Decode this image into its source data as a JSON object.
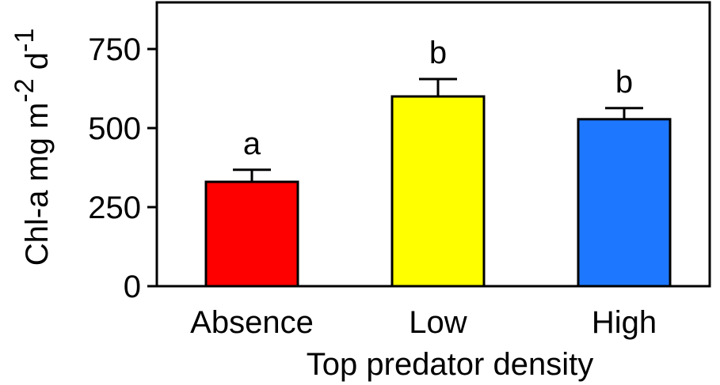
{
  "chart_data": {
    "type": "bar",
    "title": "",
    "xlabel": "Top predator density",
    "ylabel": {
      "base": "Chl-a mg m",
      "exp1": "-2",
      "unit2": " d",
      "exp2": "-1"
    },
    "categories": [
      "Absence",
      "Low",
      "High"
    ],
    "values": [
      330,
      600,
      528
    ],
    "errors": [
      38,
      55,
      35
    ],
    "colors": [
      "#ff0000",
      "#ffff00",
      "#1e78ff"
    ],
    "significance": [
      "a",
      "b",
      "b"
    ],
    "ylim": [
      0,
      900
    ],
    "yticks": [
      0,
      250,
      500,
      750
    ],
    "ytick_labels": [
      "0",
      "250",
      "500",
      "750"
    ],
    "grid": false
  }
}
